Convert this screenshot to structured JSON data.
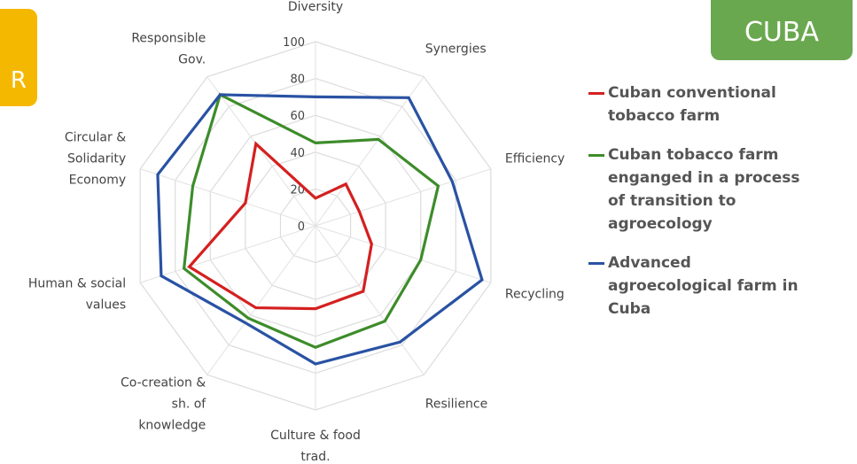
{
  "badges": {
    "left_text": "R",
    "right_text": "CUBA"
  },
  "chart_data": {
    "type": "radar",
    "categories": [
      "Diversity",
      "Synergies",
      "Efficiency",
      "Recycling",
      "Resilience",
      "Culture & food\ntrad.",
      "Co-creation &\nsh. of\nknowledge",
      "Human & social\nvalues",
      "Circular &\nSolidarity\nEconomy",
      "Responsible\nGov."
    ],
    "ylim": [
      0,
      100
    ],
    "ticks": [
      0,
      20,
      40,
      60,
      80,
      100
    ],
    "grid": true,
    "legend_position": "right",
    "series": [
      {
        "name": "Cuban conventional\ntobacco farm",
        "color": "#d42020",
        "values": [
          15,
          28,
          25,
          32,
          44,
          45,
          55,
          72,
          40,
          55
        ]
      },
      {
        "name": "Cuban tobacco farm\nenganged in a process\nof transition to\nagroecology",
        "color": "#3d8c2a",
        "values": [
          45,
          58,
          70,
          60,
          64,
          66,
          62,
          75,
          70,
          88
        ]
      },
      {
        "name": "Advanced\nagroecological farm in\nCuba",
        "color": "#2952a3",
        "values": [
          70,
          86,
          78,
          95,
          78,
          75,
          65,
          88,
          90,
          88
        ]
      }
    ]
  }
}
